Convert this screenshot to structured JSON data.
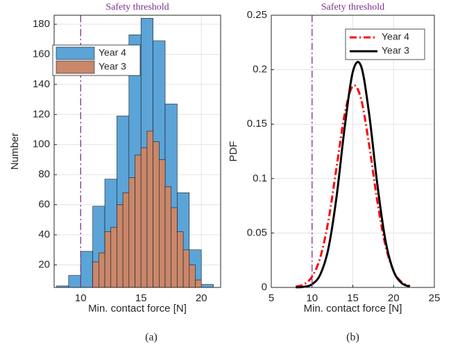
{
  "chart_data": [
    {
      "type": "histogram",
      "annotation": "Safety threshold",
      "threshold": 10,
      "threshold_color": "#7e2f8e",
      "xlabel": "Min. contact force [N]",
      "ylabel": "Number",
      "caption": "(a)",
      "xlim": [
        7.8,
        21.6
      ],
      "ylim": [
        5,
        186
      ],
      "xticks": [
        10,
        15,
        20
      ],
      "yticks": [
        20,
        40,
        60,
        80,
        100,
        120,
        140,
        160,
        180
      ],
      "grid": true,
      "legend": "northwest",
      "series": [
        {
          "name": "Year 4",
          "color": "#5ba4d8",
          "bins": [
            8,
            9,
            10,
            11,
            12,
            13,
            14,
            15,
            16,
            17,
            18,
            19,
            20,
            21
          ],
          "values": [
            6,
            13,
            29,
            59,
            77,
            119,
            173,
            184,
            169,
            127,
            68,
            30,
            7
          ]
        },
        {
          "name": "Year 3",
          "color": "#c9876b",
          "bins": [
            11,
            11.5,
            12,
            12.5,
            13,
            13.5,
            14,
            14.5,
            15,
            15.5,
            16,
            16.5,
            17,
            17.5,
            18,
            18.5,
            19,
            19.5,
            20
          ],
          "values": [
            22,
            28,
            42,
            45,
            60,
            68,
            78,
            93,
            98,
            109,
            102,
            90,
            72,
            58,
            42,
            30,
            20,
            10
          ]
        }
      ]
    },
    {
      "type": "line",
      "annotation": "Safety threshold",
      "threshold": 10,
      "threshold_color": "#7e2f8e",
      "xlabel": "Min. contact force [N]",
      "ylabel": "PDF",
      "caption": "(b)",
      "xlim": [
        5,
        25
      ],
      "ylim": [
        0,
        0.25
      ],
      "xticks": [
        5,
        10,
        15,
        20,
        25
      ],
      "yticks": [
        0,
        0.05,
        0.1,
        0.15,
        0.2,
        0.25
      ],
      "grid": true,
      "legend": "northeast",
      "x": [
        8,
        9,
        10,
        11,
        12,
        13,
        14,
        15,
        16,
        17,
        18,
        19,
        20,
        21,
        22
      ],
      "series": [
        {
          "name": "Year 4",
          "color": "#ff0000",
          "linestyle": "dashdot",
          "values": [
            0.00066,
            0.00285,
            0.00986,
            0.0274,
            0.0611,
            0.11,
            0.159,
            0.185,
            0.1735,
            0.1308,
            0.0794,
            0.0387,
            0.0152,
            0.0048,
            0.00122
          ]
        },
        {
          "name": "Year 3",
          "color": "#000000",
          "linestyle": "solid",
          "values": [
            8e-05,
            0.00056,
            0.00293,
            0.01173,
            0.0357,
            0.083,
            0.1469,
            0.198,
            0.2035,
            0.1594,
            0.0951,
            0.0432,
            0.01496,
            0.00395,
            0.00079
          ]
        }
      ]
    }
  ]
}
